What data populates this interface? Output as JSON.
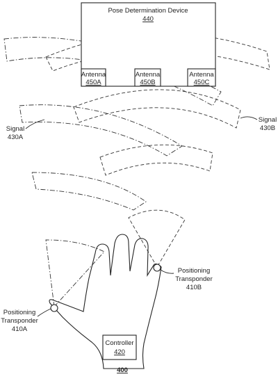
{
  "device": {
    "title": "Pose Determination Device",
    "ref": "440"
  },
  "antennas": [
    {
      "label": "Antenna",
      "ref": "450A"
    },
    {
      "label": "Antenna",
      "ref": "450B"
    },
    {
      "label": "Antenna",
      "ref": "450C"
    }
  ],
  "signals": [
    {
      "label": "Signal",
      "ref": "430A"
    },
    {
      "label": "Signal",
      "ref": "430B"
    }
  ],
  "transponders": [
    {
      "label_line1": "Positioning",
      "label_line2": "Transponder",
      "ref": "410A"
    },
    {
      "label_line1": "Positioning",
      "label_line2": "Transponder",
      "ref": "410B"
    }
  ],
  "controller": {
    "label": "Controller",
    "ref": "420"
  },
  "figure_ref": "400"
}
